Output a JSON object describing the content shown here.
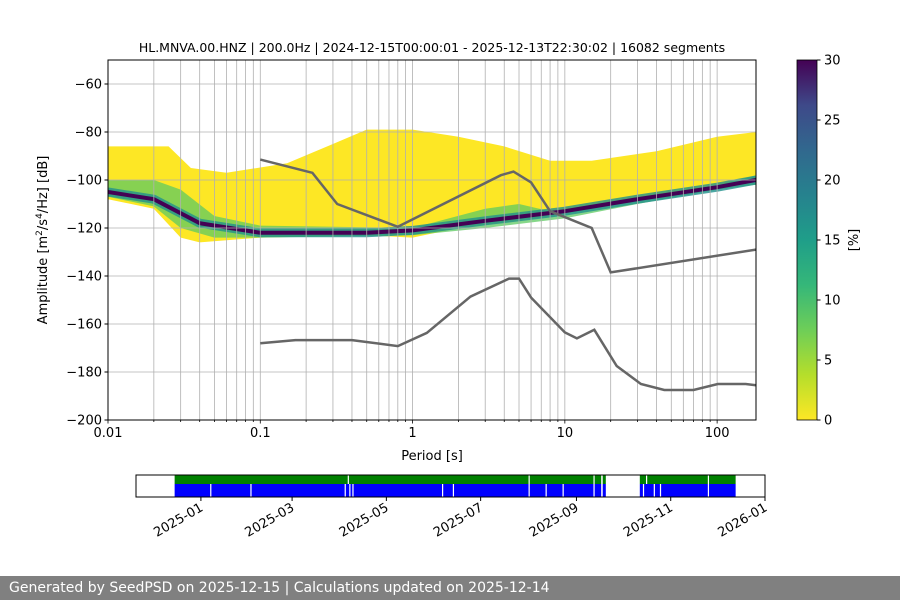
{
  "chart_data": {
    "type": "heatmap",
    "title": "HL.MNVA.00.HNZ | 200.0Hz | 2024-12-15T00:00:01 - 2025-12-13T22:30:02 | 16082 segments",
    "xlabel": "Period [s]",
    "ylabel": "Amplitude [m²/s⁴/Hz] [dB]",
    "xscale": "log",
    "xlim": [
      0.01,
      180
    ],
    "ylim": [
      -200,
      -50
    ],
    "xticks": [
      {
        "v": 0.01,
        "label": "0.01"
      },
      {
        "v": 0.1,
        "label": "0.1"
      },
      {
        "v": 1,
        "label": "1"
      },
      {
        "v": 10,
        "label": "10"
      },
      {
        "v": 100,
        "label": "100"
      }
    ],
    "yticks": [
      -60,
      -80,
      -100,
      -120,
      -140,
      -160,
      -180,
      -200
    ],
    "grid": true,
    "colorbar": {
      "label": "[%]",
      "range": [
        0,
        30
      ],
      "ticks": [
        0,
        5,
        10,
        15,
        20,
        25,
        30
      ],
      "colormap": "viridis_r"
    },
    "psd_envelope": {
      "upper": [
        [
          0.01,
          -86
        ],
        [
          0.025,
          -86
        ],
        [
          0.035,
          -95
        ],
        [
          0.06,
          -97
        ],
        [
          0.15,
          -93
        ],
        [
          0.3,
          -85
        ],
        [
          0.5,
          -79
        ],
        [
          1,
          -79
        ],
        [
          2,
          -82
        ],
        [
          4,
          -86
        ],
        [
          8,
          -92
        ],
        [
          15,
          -92
        ],
        [
          40,
          -88
        ],
        [
          100,
          -82
        ],
        [
          180,
          -80
        ]
      ],
      "lower": [
        [
          0.01,
          -108
        ],
        [
          0.02,
          -112
        ],
        [
          0.03,
          -124
        ],
        [
          0.04,
          -126
        ],
        [
          0.1,
          -124
        ],
        [
          0.5,
          -123
        ],
        [
          1,
          -124
        ],
        [
          2,
          -120
        ],
        [
          5,
          -117
        ],
        [
          10,
          -114
        ],
        [
          30,
          -108
        ],
        [
          100,
          -102
        ],
        [
          180,
          -100
        ]
      ]
    },
    "psd_core_band": {
      "upper": [
        [
          0.01,
          -100
        ],
        [
          0.02,
          -100
        ],
        [
          0.03,
          -104
        ],
        [
          0.05,
          -115
        ],
        [
          0.1,
          -119
        ],
        [
          1,
          -120
        ],
        [
          3,
          -112
        ],
        [
          5,
          -110
        ],
        [
          8,
          -113
        ],
        [
          20,
          -110
        ],
        [
          60,
          -106
        ],
        [
          180,
          -98
        ]
      ],
      "lower": [
        [
          0.01,
          -107
        ],
        [
          0.02,
          -111
        ],
        [
          0.03,
          -120
        ],
        [
          0.05,
          -124
        ],
        [
          0.1,
          -124
        ],
        [
          1,
          -123
        ],
        [
          3,
          -120
        ],
        [
          10,
          -116
        ],
        [
          30,
          -110
        ],
        [
          100,
          -104
        ],
        [
          180,
          -102
        ]
      ]
    },
    "psd_mode": [
      [
        0.01,
        -105
      ],
      [
        0.02,
        -108
      ],
      [
        0.04,
        -118
      ],
      [
        0.1,
        -122
      ],
      [
        0.5,
        -122
      ],
      [
        1,
        -121
      ],
      [
        3,
        -117
      ],
      [
        10,
        -113
      ],
      [
        30,
        -108
      ],
      [
        100,
        -103
      ],
      [
        180,
        -100
      ]
    ],
    "nhnm": [
      [
        0.1,
        -91.5
      ],
      [
        0.22,
        -97
      ],
      [
        0.32,
        -110
      ],
      [
        0.8,
        -119.5
      ],
      [
        3.8,
        -98
      ],
      [
        4.6,
        -96.5
      ],
      [
        6,
        -101
      ],
      [
        8,
        -113
      ],
      [
        15,
        -120
      ],
      [
        20,
        -138.5
      ],
      [
        180,
        -129
      ]
    ],
    "nlnm": [
      [
        0.1,
        -168
      ],
      [
        0.17,
        -166.7
      ],
      [
        0.4,
        -166.7
      ],
      [
        0.8,
        -169.2
      ],
      [
        1.24,
        -163.7
      ],
      [
        2.4,
        -148.6
      ],
      [
        4.3,
        -141.1
      ],
      [
        5,
        -141.1
      ],
      [
        6,
        -149
      ],
      [
        10,
        -163.5
      ],
      [
        12,
        -166
      ],
      [
        15.6,
        -162.4
      ],
      [
        21.9,
        -177.5
      ],
      [
        31.6,
        -185
      ],
      [
        45,
        -187.5
      ],
      [
        70,
        -187.5
      ],
      [
        101,
        -185
      ],
      [
        154,
        -185
      ],
      [
        180,
        -185.5
      ]
    ],
    "colors": {
      "mode": "#440154",
      "core": "#21918c",
      "green": "#5ec962",
      "yellow": "#fde725",
      "noise_model": "#666666"
    },
    "timeline": {
      "range": [
        "2024-11-20",
        "2026-01-01"
      ],
      "xticks": [
        "2025-01",
        "2025-03",
        "2025-05",
        "2025-07",
        "2025-09",
        "2025-11",
        "2026-01"
      ],
      "coverage_used": {
        "color": "#008000",
        "segments": [
          [
            "2024-12-15",
            "2025-09-17"
          ],
          [
            "2025-09-18",
            "2025-09-20"
          ],
          [
            "2025-10-12",
            "2025-12-13"
          ]
        ],
        "gaps": [
          "2025-04-06",
          "2025-08-01",
          "2025-09-12",
          "2025-10-16",
          "2025-11-25"
        ]
      },
      "coverage_available": {
        "color": "#0000ff",
        "segments": [
          [
            "2024-12-15",
            "2025-09-17"
          ],
          [
            "2025-09-18",
            "2025-09-20"
          ],
          [
            "2025-10-12",
            "2025-12-13"
          ]
        ],
        "gaps": [
          "2025-01-07",
          "2025-02-02",
          "2025-04-04",
          "2025-04-07",
          "2025-04-09",
          "2025-06-06",
          "2025-06-13",
          "2025-08-01",
          "2025-08-12",
          "2025-08-23",
          "2025-09-12",
          "2025-10-14",
          "2025-10-21",
          "2025-10-25",
          "2025-11-25"
        ]
      }
    }
  },
  "footer": {
    "text": "Generated by SeedPSD on 2025-12-15 | Calculations updated on 2025-12-14"
  }
}
